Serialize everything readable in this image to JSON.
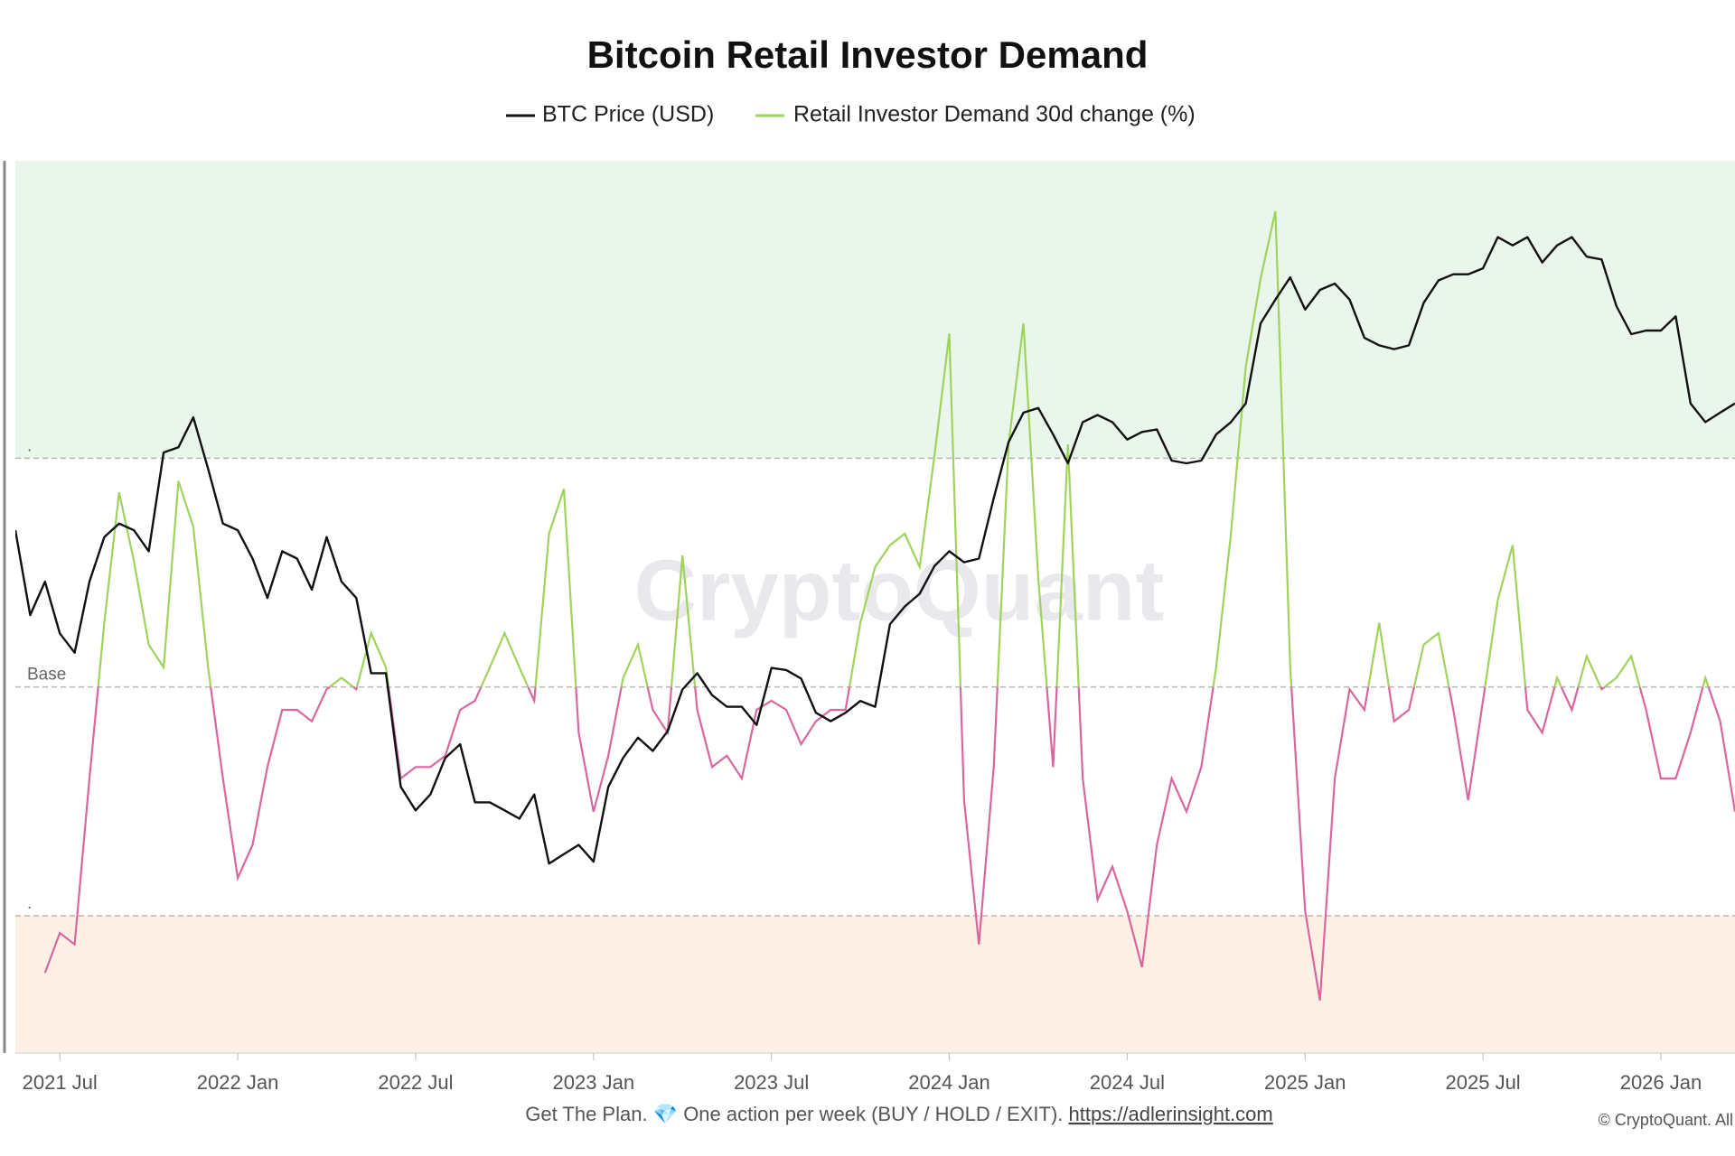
{
  "chart_data": {
    "type": "line",
    "title": "Bitcoin Retail Investor Demand",
    "watermark": "CryptoQuant",
    "footer": "Get The Plan. 💎 One action per week (BUY / HOLD / EXIT).",
    "footer_link": "https://adlerinsight.com",
    "credit": "© CryptoQuant. All",
    "categories": [
      null,
      null,
      null,
      "2021 Jul",
      null,
      null,
      null,
      null,
      null,
      null,
      null,
      null,
      null,
      null,
      null,
      "2022 Jan",
      null,
      null,
      null,
      null,
      null,
      null,
      null,
      null,
      null,
      null,
      null,
      "2022 Jul",
      null,
      null,
      null,
      null,
      null,
      null,
      null,
      null,
      null,
      null,
      null,
      "2023 Jan",
      null,
      null,
      null,
      null,
      null,
      null,
      null,
      null,
      null,
      null,
      null,
      "2023 Jul",
      null,
      null,
      null,
      null,
      null,
      null,
      null,
      null,
      null,
      null,
      null,
      "2024 Jan",
      null,
      null,
      null,
      null,
      null,
      null,
      null,
      null,
      null,
      null,
      null,
      "2024 Jul",
      null,
      null,
      null,
      null,
      null,
      null,
      null,
      null,
      null,
      null,
      null,
      "2025 Jan",
      null,
      null,
      null,
      null,
      null,
      null,
      null,
      null,
      null,
      null,
      null,
      "2025 Jul",
      null,
      null,
      null,
      null,
      null,
      null,
      null,
      null,
      null,
      null,
      null,
      "2026 Jan",
      null,
      null,
      null,
      null,
      null
    ],
    "series": [
      {
        "name": "BTC Price (USD)",
        "color": "#111111",
        "axis": "y2",
        "values": [
          47000,
          36000,
          40000,
          34000,
          32000,
          40000,
          46000,
          48000,
          47000,
          44000,
          60000,
          61000,
          67000,
          57000,
          48000,
          47000,
          43000,
          38000,
          44000,
          43000,
          39000,
          46000,
          40000,
          38000,
          30000,
          30000,
          21000,
          19500,
          20500,
          23000,
          24000,
          20000,
          20000,
          19500,
          19000,
          20500,
          16500,
          17000,
          17500,
          16600,
          21000,
          23000,
          24500,
          23500,
          25000,
          28500,
          30000,
          28000,
          27000,
          27000,
          25500,
          30500,
          30300,
          29500,
          26500,
          25800,
          26500,
          27500,
          27000,
          35000,
          37000,
          38500,
          42000,
          44000,
          42500,
          43000,
          52000,
          62000,
          68000,
          69000,
          63500,
          58000,
          66000,
          67500,
          66000,
          62500,
          64000,
          64500,
          58500,
          58000,
          58500,
          63500,
          66000,
          70000,
          90000,
          97000,
          104000,
          94000,
          100000,
          102000,
          97000,
          86000,
          84000,
          83000,
          84000,
          96000,
          103000,
          105000,
          105000,
          107000,
          118000,
          115000,
          118000,
          109000,
          115000,
          118000,
          111000,
          110000,
          95000,
          87000,
          88000,
          88000,
          92000,
          70000,
          66000,
          68000,
          70000
        ]
      },
      {
        "name": "Retail Investor Demand 30d change (%)",
        "color": "#9fd35a",
        "negative_color": "#d9669f",
        "values": [
          null,
          null,
          -25,
          -21.5,
          -22.5,
          -8,
          5.6,
          17,
          11,
          3.7,
          1.7,
          18,
          14,
          1.7,
          -8,
          -16.7,
          -13.8,
          -7,
          -2,
          -2,
          -3,
          -0.2,
          0.8,
          -0.2,
          4.7,
          1.7,
          -8,
          -7,
          -7,
          -6,
          -2,
          -1.2,
          1.7,
          4.7,
          1.7,
          -1.2,
          13.4,
          17.3,
          -4,
          -10.9,
          -6,
          0.8,
          3.7,
          -2,
          -4,
          11.5,
          -2,
          -7,
          -6,
          -8,
          -2,
          -1.2,
          -2,
          -5,
          -3,
          -2,
          -2,
          5.6,
          10.5,
          12.4,
          13.4,
          10.5,
          20.2,
          30.9,
          -9.9,
          -22.5,
          -7,
          21.2,
          31.8,
          9.5,
          -7,
          21.2,
          -8,
          -18.6,
          -15.7,
          -19.6,
          -24.5,
          -13.8,
          -8,
          -10.9,
          -7,
          1.7,
          13.4,
          28,
          35.7,
          41.6,
          1.7,
          -19.6,
          -27.4,
          -8,
          -0.2,
          -2,
          5.6,
          -3,
          -2,
          3.7,
          4.7,
          -2,
          -9.9,
          -1.2,
          7.6,
          12.4,
          -2,
          -4,
          0.8,
          -2,
          2.7,
          -0.2,
          0.8,
          2.7,
          -2,
          -8,
          -8,
          -4,
          0.8,
          -3,
          -10.9
        ]
      }
    ],
    "ylim": [
      -32,
      46
    ],
    "yticks": [
      {
        "value": 20,
        "label": "."
      },
      {
        "value": 0,
        "label": "Base"
      },
      {
        "value": -20,
        "label": "."
      }
    ],
    "bands": [
      {
        "from": 20,
        "to": 46,
        "color": "#e9f6ec"
      },
      {
        "from": -32,
        "to": -20,
        "color": "#fdf1e6"
      }
    ],
    "y2lim": [
      9100,
      150000
    ],
    "y2scale": "log"
  }
}
